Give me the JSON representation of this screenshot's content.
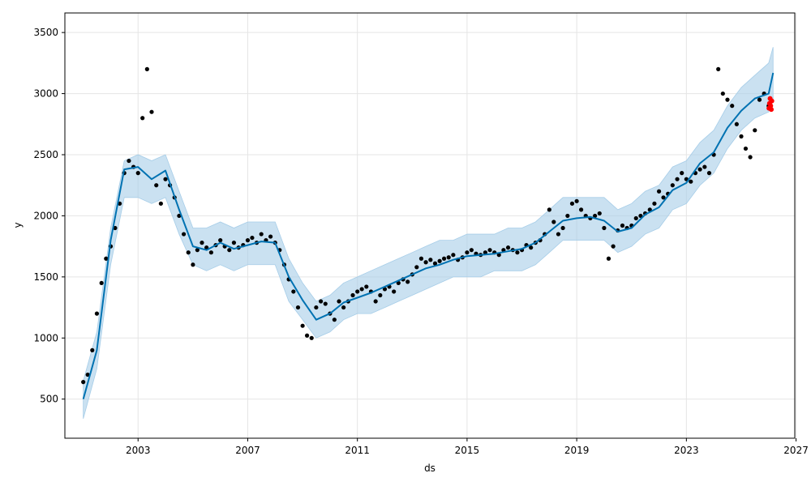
{
  "chart_data": {
    "type": "line",
    "title": "",
    "xlabel": "ds",
    "ylabel": "y",
    "x_axis": {
      "type": "date",
      "range": [
        "2000-05-01",
        "2026-12-15"
      ],
      "ticks": [
        "2003",
        "2007",
        "2011",
        "2015",
        "2019",
        "2023",
        "2027"
      ]
    },
    "y_axis": {
      "range": [
        180,
        3660
      ],
      "ticks": [
        500,
        1000,
        1500,
        2000,
        2500,
        3000,
        3500
      ]
    },
    "grid": true,
    "legend": "none",
    "colors": {
      "observed": "#000000",
      "forecast": "#0072B2",
      "uncertainty": "#a6cde8",
      "highlight": "#ff0000"
    },
    "series": [
      {
        "role": "uncertainty-band",
        "points": [
          [
            "2001-01-01",
            340,
            650
          ],
          [
            "2001-07-01",
            750,
            1050
          ],
          [
            "2002-01-01",
            1600,
            1900
          ],
          [
            "2002-07-01",
            2150,
            2450
          ],
          [
            "2003-01-01",
            2150,
            2500
          ],
          [
            "2003-07-01",
            2100,
            2450
          ],
          [
            "2004-01-01",
            2150,
            2500
          ],
          [
            "2004-07-01",
            1850,
            2200
          ],
          [
            "2005-01-01",
            1600,
            1900
          ],
          [
            "2005-07-01",
            1550,
            1900
          ],
          [
            "2006-01-01",
            1600,
            1950
          ],
          [
            "2006-07-01",
            1550,
            1900
          ],
          [
            "2007-01-01",
            1600,
            1950
          ],
          [
            "2007-07-01",
            1600,
            1950
          ],
          [
            "2008-01-01",
            1600,
            1950
          ],
          [
            "2008-07-01",
            1300,
            1650
          ],
          [
            "2009-01-01",
            1150,
            1450
          ],
          [
            "2009-07-01",
            1000,
            1300
          ],
          [
            "2010-01-01",
            1050,
            1350
          ],
          [
            "2010-07-01",
            1150,
            1450
          ],
          [
            "2011-01-01",
            1200,
            1500
          ],
          [
            "2011-07-01",
            1200,
            1550
          ],
          [
            "2012-01-01",
            1250,
            1600
          ],
          [
            "2012-07-01",
            1300,
            1650
          ],
          [
            "2013-01-01",
            1350,
            1700
          ],
          [
            "2013-07-01",
            1400,
            1750
          ],
          [
            "2014-01-01",
            1450,
            1800
          ],
          [
            "2014-07-01",
            1500,
            1800
          ],
          [
            "2015-01-01",
            1500,
            1850
          ],
          [
            "2015-07-01",
            1500,
            1850
          ],
          [
            "2016-01-01",
            1550,
            1850
          ],
          [
            "2016-07-01",
            1550,
            1900
          ],
          [
            "2017-01-01",
            1550,
            1900
          ],
          [
            "2017-07-01",
            1600,
            1950
          ],
          [
            "2018-01-01",
            1700,
            2050
          ],
          [
            "2018-07-01",
            1800,
            2150
          ],
          [
            "2019-01-01",
            1800,
            2150
          ],
          [
            "2019-07-01",
            1800,
            2150
          ],
          [
            "2020-01-01",
            1800,
            2150
          ],
          [
            "2020-07-01",
            1700,
            2050
          ],
          [
            "2021-01-01",
            1750,
            2100
          ],
          [
            "2021-07-01",
            1850,
            2200
          ],
          [
            "2022-01-01",
            1900,
            2250
          ],
          [
            "2022-07-01",
            2050,
            2400
          ],
          [
            "2023-01-01",
            2100,
            2450
          ],
          [
            "2023-07-01",
            2250,
            2600
          ],
          [
            "2024-01-01",
            2350,
            2700
          ],
          [
            "2024-07-01",
            2550,
            2900
          ],
          [
            "2025-01-01",
            2700,
            3050
          ],
          [
            "2025-07-01",
            2800,
            3150
          ],
          [
            "2026-01-01",
            2850,
            3250
          ],
          [
            "2026-03-01",
            2950,
            3380
          ]
        ]
      },
      {
        "role": "forecast-line",
        "points": [
          [
            "2001-01-01",
            500
          ],
          [
            "2001-07-01",
            900
          ],
          [
            "2002-01-01",
            1800
          ],
          [
            "2002-07-01",
            2380
          ],
          [
            "2003-01-01",
            2400
          ],
          [
            "2003-07-01",
            2300
          ],
          [
            "2004-01-01",
            2370
          ],
          [
            "2004-07-01",
            2050
          ],
          [
            "2005-01-01",
            1750
          ],
          [
            "2005-07-01",
            1720
          ],
          [
            "2006-01-01",
            1780
          ],
          [
            "2006-07-01",
            1730
          ],
          [
            "2007-01-01",
            1760
          ],
          [
            "2007-07-01",
            1790
          ],
          [
            "2008-01-01",
            1780
          ],
          [
            "2008-07-01",
            1500
          ],
          [
            "2009-01-01",
            1310
          ],
          [
            "2009-07-01",
            1150
          ],
          [
            "2010-01-01",
            1200
          ],
          [
            "2010-07-01",
            1290
          ],
          [
            "2011-01-01",
            1330
          ],
          [
            "2011-07-01",
            1370
          ],
          [
            "2012-01-01",
            1420
          ],
          [
            "2012-07-01",
            1470
          ],
          [
            "2013-01-01",
            1520
          ],
          [
            "2013-07-01",
            1570
          ],
          [
            "2014-01-01",
            1600
          ],
          [
            "2014-07-01",
            1640
          ],
          [
            "2015-01-01",
            1670
          ],
          [
            "2015-07-01",
            1680
          ],
          [
            "2016-01-01",
            1690
          ],
          [
            "2016-07-01",
            1710
          ],
          [
            "2017-01-01",
            1730
          ],
          [
            "2017-07-01",
            1780
          ],
          [
            "2018-01-01",
            1870
          ],
          [
            "2018-07-01",
            1960
          ],
          [
            "2019-01-01",
            1980
          ],
          [
            "2019-07-01",
            1990
          ],
          [
            "2020-01-01",
            1960
          ],
          [
            "2020-07-01",
            1870
          ],
          [
            "2021-01-01",
            1900
          ],
          [
            "2021-07-01",
            2010
          ],
          [
            "2022-01-01",
            2070
          ],
          [
            "2022-07-01",
            2210
          ],
          [
            "2023-01-01",
            2270
          ],
          [
            "2023-07-01",
            2430
          ],
          [
            "2024-01-01",
            2520
          ],
          [
            "2024-07-01",
            2720
          ],
          [
            "2025-01-01",
            2860
          ],
          [
            "2025-07-01",
            2960
          ],
          [
            "2026-01-01",
            3000
          ],
          [
            "2026-03-01",
            3170
          ]
        ]
      },
      {
        "role": "observed-points",
        "points": [
          [
            "2001-01-01",
            640
          ],
          [
            "2001-03-01",
            700
          ],
          [
            "2001-05-01",
            900
          ],
          [
            "2001-07-01",
            1200
          ],
          [
            "2001-09-01",
            1450
          ],
          [
            "2001-11-01",
            1650
          ],
          [
            "2002-01-01",
            1750
          ],
          [
            "2002-03-01",
            1900
          ],
          [
            "2002-05-01",
            2100
          ],
          [
            "2002-07-01",
            2350
          ],
          [
            "2002-09-01",
            2450
          ],
          [
            "2002-11-01",
            2400
          ],
          [
            "2003-01-01",
            2350
          ],
          [
            "2003-03-01",
            2800
          ],
          [
            "2003-05-01",
            3200
          ],
          [
            "2003-07-01",
            2850
          ],
          [
            "2003-09-01",
            2250
          ],
          [
            "2003-11-01",
            2100
          ],
          [
            "2004-01-01",
            2300
          ],
          [
            "2004-03-01",
            2250
          ],
          [
            "2004-05-01",
            2150
          ],
          [
            "2004-07-01",
            2000
          ],
          [
            "2004-09-01",
            1850
          ],
          [
            "2004-11-01",
            1700
          ],
          [
            "2005-01-01",
            1600
          ],
          [
            "2005-03-01",
            1720
          ],
          [
            "2005-05-01",
            1780
          ],
          [
            "2005-07-01",
            1740
          ],
          [
            "2005-09-01",
            1700
          ],
          [
            "2005-11-01",
            1760
          ],
          [
            "2006-01-01",
            1800
          ],
          [
            "2006-03-01",
            1750
          ],
          [
            "2006-05-01",
            1720
          ],
          [
            "2006-07-01",
            1780
          ],
          [
            "2006-09-01",
            1740
          ],
          [
            "2006-11-01",
            1760
          ],
          [
            "2007-01-01",
            1800
          ],
          [
            "2007-03-01",
            1820
          ],
          [
            "2007-05-01",
            1780
          ],
          [
            "2007-07-01",
            1850
          ],
          [
            "2007-09-01",
            1800
          ],
          [
            "2007-11-01",
            1830
          ],
          [
            "2008-01-01",
            1780
          ],
          [
            "2008-03-01",
            1720
          ],
          [
            "2008-05-01",
            1600
          ],
          [
            "2008-07-01",
            1480
          ],
          [
            "2008-09-01",
            1380
          ],
          [
            "2008-11-01",
            1250
          ],
          [
            "2009-01-01",
            1100
          ],
          [
            "2009-03-01",
            1020
          ],
          [
            "2009-05-01",
            1000
          ],
          [
            "2009-07-01",
            1250
          ],
          [
            "2009-09-01",
            1300
          ],
          [
            "2009-11-01",
            1280
          ],
          [
            "2010-01-01",
            1200
          ],
          [
            "2010-03-01",
            1150
          ],
          [
            "2010-05-01",
            1300
          ],
          [
            "2010-07-01",
            1250
          ],
          [
            "2010-09-01",
            1300
          ],
          [
            "2010-11-01",
            1350
          ],
          [
            "2011-01-01",
            1380
          ],
          [
            "2011-03-01",
            1400
          ],
          [
            "2011-05-01",
            1420
          ],
          [
            "2011-07-01",
            1380
          ],
          [
            "2011-09-01",
            1300
          ],
          [
            "2011-11-01",
            1350
          ],
          [
            "2012-01-01",
            1400
          ],
          [
            "2012-03-01",
            1420
          ],
          [
            "2012-05-01",
            1380
          ],
          [
            "2012-07-01",
            1450
          ],
          [
            "2012-09-01",
            1480
          ],
          [
            "2012-11-01",
            1460
          ],
          [
            "2013-01-01",
            1520
          ],
          [
            "2013-03-01",
            1580
          ],
          [
            "2013-05-01",
            1650
          ],
          [
            "2013-07-01",
            1620
          ],
          [
            "2013-09-01",
            1640
          ],
          [
            "2013-11-01",
            1610
          ],
          [
            "2014-01-01",
            1630
          ],
          [
            "2014-03-01",
            1650
          ],
          [
            "2014-05-01",
            1660
          ],
          [
            "2014-07-01",
            1680
          ],
          [
            "2014-09-01",
            1640
          ],
          [
            "2014-11-01",
            1660
          ],
          [
            "2015-01-01",
            1700
          ],
          [
            "2015-03-01",
            1720
          ],
          [
            "2015-05-01",
            1690
          ],
          [
            "2015-07-01",
            1680
          ],
          [
            "2015-09-01",
            1700
          ],
          [
            "2015-11-01",
            1720
          ],
          [
            "2016-01-01",
            1700
          ],
          [
            "2016-03-01",
            1680
          ],
          [
            "2016-05-01",
            1720
          ],
          [
            "2016-07-01",
            1740
          ],
          [
            "2016-09-01",
            1720
          ],
          [
            "2016-11-01",
            1700
          ],
          [
            "2017-01-01",
            1720
          ],
          [
            "2017-03-01",
            1760
          ],
          [
            "2017-05-01",
            1740
          ],
          [
            "2017-07-01",
            1780
          ],
          [
            "2017-09-01",
            1800
          ],
          [
            "2017-11-01",
            1850
          ],
          [
            "2018-01-01",
            2050
          ],
          [
            "2018-03-01",
            1950
          ],
          [
            "2018-05-01",
            1850
          ],
          [
            "2018-07-01",
            1900
          ],
          [
            "2018-09-01",
            2000
          ],
          [
            "2018-11-01",
            2100
          ],
          [
            "2019-01-01",
            2120
          ],
          [
            "2019-03-01",
            2050
          ],
          [
            "2019-05-01",
            2000
          ],
          [
            "2019-07-01",
            1980
          ],
          [
            "2019-09-01",
            2000
          ],
          [
            "2019-11-01",
            2020
          ],
          [
            "2020-01-01",
            1900
          ],
          [
            "2020-03-01",
            1650
          ],
          [
            "2020-05-01",
            1750
          ],
          [
            "2020-07-01",
            1880
          ],
          [
            "2020-09-01",
            1920
          ],
          [
            "2020-11-01",
            1900
          ],
          [
            "2021-01-01",
            1920
          ],
          [
            "2021-03-01",
            1980
          ],
          [
            "2021-05-01",
            2000
          ],
          [
            "2021-07-01",
            2020
          ],
          [
            "2021-09-01",
            2050
          ],
          [
            "2021-11-01",
            2100
          ],
          [
            "2022-01-01",
            2200
          ],
          [
            "2022-03-01",
            2150
          ],
          [
            "2022-05-01",
            2180
          ],
          [
            "2022-07-01",
            2250
          ],
          [
            "2022-09-01",
            2300
          ],
          [
            "2022-11-01",
            2350
          ],
          [
            "2023-01-01",
            2300
          ],
          [
            "2023-03-01",
            2280
          ],
          [
            "2023-05-01",
            2350
          ],
          [
            "2023-07-01",
            2380
          ],
          [
            "2023-09-01",
            2400
          ],
          [
            "2023-11-01",
            2350
          ],
          [
            "2024-01-01",
            2500
          ],
          [
            "2024-03-01",
            3200
          ],
          [
            "2024-05-01",
            3000
          ],
          [
            "2024-07-01",
            2950
          ],
          [
            "2024-09-01",
            2900
          ],
          [
            "2024-11-01",
            2750
          ],
          [
            "2025-01-01",
            2650
          ],
          [
            "2025-03-01",
            2550
          ],
          [
            "2025-05-01",
            2480
          ],
          [
            "2025-07-01",
            2700
          ],
          [
            "2025-09-01",
            2950
          ],
          [
            "2025-11-01",
            3000
          ],
          [
            "2026-01-01",
            2900
          ]
        ]
      },
      {
        "role": "highlighted-points",
        "points": [
          [
            "2026-01-05",
            2880
          ],
          [
            "2026-01-12",
            2920
          ],
          [
            "2026-01-20",
            2960
          ],
          [
            "2026-01-28",
            2900
          ],
          [
            "2026-02-05",
            2870
          ],
          [
            "2026-02-12",
            2940
          ]
        ]
      }
    ]
  }
}
